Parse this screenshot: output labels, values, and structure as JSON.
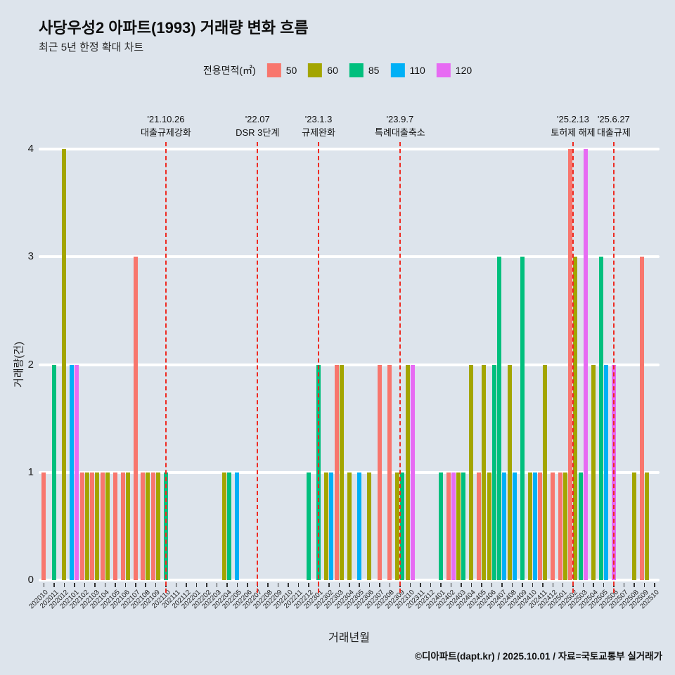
{
  "page": {
    "background": "#dde4ec"
  },
  "header": {
    "title": "사당우성2 아파트(1993) 거래량 변화 흐름",
    "subtitle": "최근 5년 한정 확대 차트"
  },
  "legend": {
    "title": "전용면적(㎡)",
    "items": [
      {
        "label": "50",
        "color": "#F8766D"
      },
      {
        "label": "60",
        "color": "#A3A500"
      },
      {
        "label": "85",
        "color": "#00BF7D"
      },
      {
        "label": "110",
        "color": "#00B0F6"
      },
      {
        "label": "120",
        "color": "#E76BF3"
      }
    ]
  },
  "chart_data": {
    "type": "bar",
    "title": "사당우성2 아파트(1993) 거래량 변화 흐름",
    "xlabel": "거래년월",
    "ylabel": "거래량(건)",
    "ylim": [
      0,
      4
    ],
    "yticks": [
      0,
      1,
      2,
      3,
      4
    ],
    "grid": "horizontal-white",
    "legend_position": "top",
    "background": "#dde4ec",
    "grid_color": "#ffffff",
    "vline_color": "#ee2a21",
    "categories": [
      "202010",
      "202011",
      "202012",
      "202101",
      "202102",
      "202103",
      "202104",
      "202105",
      "202106",
      "202107",
      "202108",
      "202109",
      "202110",
      "202111",
      "202112",
      "202201",
      "202202",
      "202203",
      "202204",
      "202205",
      "202206",
      "202207",
      "202208",
      "202209",
      "202210",
      "202211",
      "202212",
      "202301",
      "202302",
      "202303",
      "202304",
      "202305",
      "202306",
      "202307",
      "202308",
      "202309",
      "202310",
      "202311",
      "202312",
      "202401",
      "202402",
      "202403",
      "202404",
      "202405",
      "202406",
      "202407",
      "202408",
      "202409",
      "202410",
      "202411",
      "202412",
      "202501",
      "202502",
      "202503",
      "202504",
      "202505",
      "202506",
      "202507",
      "202508",
      "202509",
      "202510"
    ],
    "series": [
      {
        "name": "50",
        "color": "#F8766D",
        "values": [
          1,
          0,
          0,
          0,
          1,
          1,
          1,
          1,
          1,
          3,
          1,
          1,
          0,
          0,
          0,
          0,
          0,
          0,
          0,
          0,
          0,
          0,
          0,
          0,
          0,
          0,
          0,
          0,
          0,
          2,
          0,
          0,
          0,
          2,
          2,
          0,
          0,
          0,
          0,
          0,
          1,
          0,
          0,
          1,
          0,
          0,
          0,
          0,
          0,
          1,
          1,
          1,
          4,
          0,
          0,
          0,
          0,
          0,
          0,
          3,
          0
        ]
      },
      {
        "name": "60",
        "color": "#A3A500",
        "values": [
          0,
          0,
          4,
          0,
          1,
          1,
          1,
          0,
          1,
          0,
          1,
          1,
          0,
          0,
          0,
          0,
          0,
          0,
          1,
          0,
          0,
          0,
          0,
          0,
          0,
          0,
          0,
          0,
          1,
          2,
          1,
          0,
          1,
          0,
          0,
          1,
          2,
          0,
          0,
          0,
          0,
          1,
          2,
          2,
          1,
          0,
          2,
          0,
          1,
          2,
          0,
          1,
          3,
          0,
          2,
          0,
          0,
          0,
          1,
          1,
          0
        ]
      },
      {
        "name": "85",
        "color": "#00BF7D",
        "values": [
          0,
          2,
          0,
          0,
          0,
          0,
          0,
          0,
          0,
          0,
          0,
          0,
          1,
          0,
          0,
          0,
          0,
          0,
          1,
          0,
          0,
          0,
          0,
          0,
          0,
          0,
          1,
          2,
          0,
          0,
          0,
          0,
          0,
          0,
          0,
          1,
          0,
          0,
          0,
          1,
          0,
          1,
          0,
          0,
          2,
          3,
          0,
          3,
          0,
          0,
          0,
          0,
          0,
          1,
          0,
          3,
          0,
          0,
          0,
          0,
          0
        ]
      },
      {
        "name": "110",
        "color": "#00B0F6",
        "values": [
          0,
          0,
          0,
          2,
          0,
          0,
          0,
          0,
          0,
          0,
          0,
          0,
          0,
          0,
          0,
          0,
          0,
          0,
          0,
          1,
          0,
          0,
          0,
          0,
          0,
          0,
          0,
          0,
          1,
          0,
          0,
          1,
          0,
          0,
          0,
          0,
          0,
          0,
          0,
          0,
          0,
          0,
          0,
          0,
          0,
          1,
          1,
          0,
          1,
          0,
          0,
          0,
          0,
          0,
          0,
          2,
          0,
          0,
          0,
          0,
          0
        ]
      },
      {
        "name": "120",
        "color": "#E76BF3",
        "values": [
          0,
          0,
          0,
          2,
          0,
          0,
          0,
          0,
          0,
          0,
          0,
          0,
          0,
          0,
          0,
          0,
          0,
          0,
          0,
          0,
          0,
          0,
          0,
          0,
          0,
          0,
          0,
          0,
          0,
          0,
          0,
          0,
          0,
          0,
          0,
          0,
          2,
          0,
          0,
          0,
          1,
          0,
          0,
          0,
          0,
          0,
          0,
          0,
          0,
          0,
          0,
          0,
          0,
          4,
          0,
          0,
          2,
          0,
          0,
          0,
          0
        ]
      }
    ],
    "annotations": [
      {
        "month": "202110",
        "date": "'21.10.26",
        "label": "대출규제강화"
      },
      {
        "month": "202207",
        "date": "'22.07",
        "label": "DSR 3단계"
      },
      {
        "month": "202301",
        "date": "'23.1.3",
        "label": "규제완화"
      },
      {
        "month": "202309",
        "date": "'23.9.7",
        "label": "특례대출축소"
      },
      {
        "month": "202502",
        "date": "'25.2.13",
        "label": "토허제 해제"
      },
      {
        "month": "202506",
        "date": "'25.6.27",
        "label": "대출규제"
      }
    ]
  },
  "footer": {
    "credit": "©디아파트(dapt.kr) / 2025.10.01 / 자료=국토교통부 실거래가"
  }
}
